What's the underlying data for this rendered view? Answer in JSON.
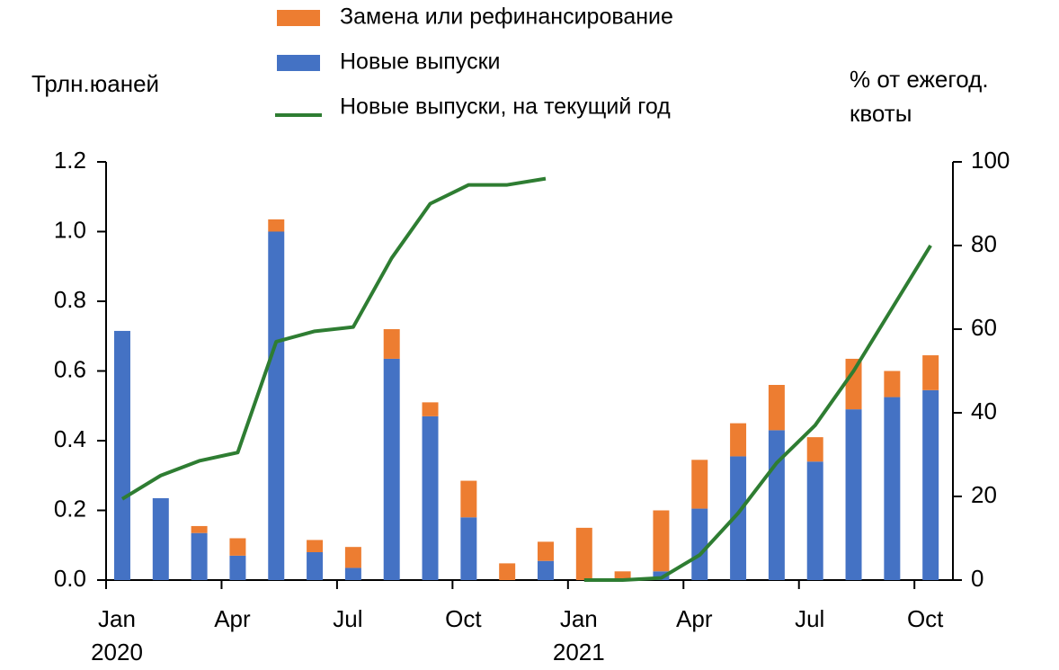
{
  "chart_data": {
    "type": "bar",
    "legend_position": "top",
    "y_label": "Трлн.юаней",
    "y2_label": [
      "% от ежегод.",
      "квоты"
    ],
    "categories": [
      "Jan",
      null,
      null,
      "Apr",
      null,
      null,
      "Jul",
      null,
      null,
      "Oct",
      null,
      null,
      "Jan",
      null,
      null,
      "Apr",
      null,
      null,
      "Jul",
      null,
      null,
      "Oct"
    ],
    "years": [
      {
        "label": "2020",
        "start": 0
      },
      {
        "label": "2021",
        "start": 12
      }
    ],
    "ylim": [
      0,
      1.2
    ],
    "yticks": [
      {
        "value": 0,
        "label": "0.0"
      },
      0.2,
      0.4,
      0.6,
      0.8,
      {
        "value": 1,
        "label": "1.0"
      },
      1.2
    ],
    "y2lim": [
      0,
      100
    ],
    "y2ticks": [
      0,
      20,
      40,
      60,
      80,
      100
    ],
    "series": [
      {
        "name": "Замена или рефинансирование",
        "kind": "bar",
        "stack": 1,
        "color": "#ed7d31",
        "values": [
          0,
          0,
          0.02,
          0.05,
          0.035,
          0.035,
          0.06,
          0.085,
          0.04,
          0.105,
          0.048,
          0.055,
          0.15,
          0.025,
          0.175,
          0.14,
          0.095,
          0.13,
          0.07,
          0.145,
          0.075,
          0.1
        ]
      },
      {
        "name": "Новые выпуски",
        "kind": "bar",
        "stack": 0,
        "color": "#4472c4",
        "values": [
          0.715,
          0.235,
          0.135,
          0.07,
          1.0,
          0.08,
          0.035,
          0.635,
          0.47,
          0.18,
          0,
          0.055,
          0,
          0,
          0.025,
          0.205,
          0.355,
          0.43,
          0.34,
          0.49,
          0.525,
          0.545
        ]
      },
      {
        "name": "Новые  выпуски, на текущий год",
        "kind": "line",
        "axis": "y2",
        "color": "#2e7d32",
        "values": [
          19.4,
          25,
          28.5,
          30.5,
          57,
          59.5,
          60.5,
          77,
          90,
          94.5,
          94.5,
          96,
          0,
          0,
          0.5,
          6,
          16,
          28,
          37,
          50,
          65,
          80
        ]
      }
    ]
  }
}
